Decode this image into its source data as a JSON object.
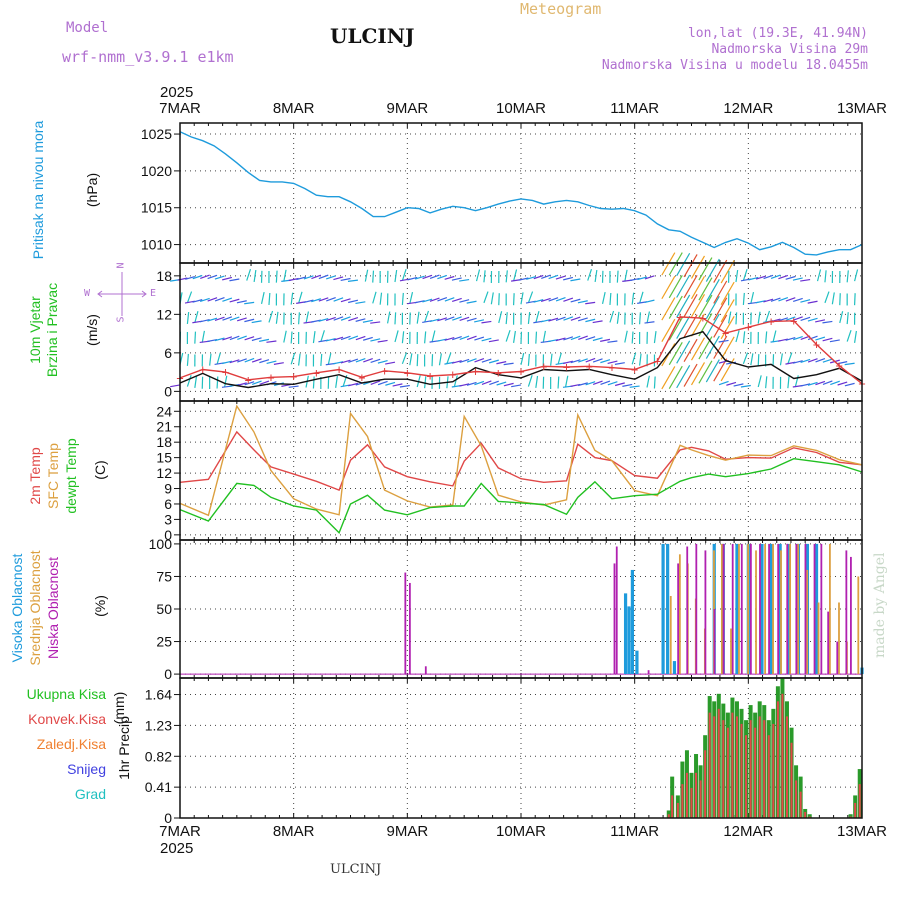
{
  "header": {
    "model_label": "Model",
    "model_name": "wrf-nmm_v3.9.1 e1km",
    "title": "ULCINJ",
    "product": "Meteogram",
    "coords": "lon,lat (19.3E, 41.94N)",
    "elevation": "Nadmorska Visina 29m",
    "model_elevation": "Nadmorska Visina u modelu 18.0455m",
    "year_top": "2025",
    "year_bottom": "2025",
    "footer_station": "ULCINJ",
    "watermark": "made by Angel"
  },
  "colors": {
    "pressure": "#1e9bdc",
    "wind_speed": "#111111",
    "wind_gust": "#e03c3c",
    "t2m": "#e04848",
    "tsfc": "#dca040",
    "dewpt": "#22c022",
    "cloud_high": "#1e9bdc",
    "cloud_mid": "#dca040",
    "cloud_low": "#b020b0",
    "precip_total": "#2a9a2a",
    "precip_conv": "#e04848",
    "precip_strat": "#f08030",
    "snow": "#4040e0",
    "hail": "#20c0c0",
    "compass": "#b070d0"
  },
  "chart_data": [
    {
      "type": "line",
      "panel": "pressure",
      "ylabel_main": "Pritisak na nivou mora",
      "unit": "(hPa)",
      "x": [
        "7MAR",
        "8MAR",
        "9MAR",
        "10MAR",
        "11MAR",
        "12MAR",
        "13MAR"
      ],
      "yticks": [
        1010,
        1015,
        1020,
        1025
      ],
      "ylim": [
        1007.5,
        1026.5
      ],
      "grid": true,
      "series": [
        {
          "x": [
            0,
            0.1,
            0.2,
            0.3,
            0.4,
            0.5,
            0.6,
            0.7,
            0.8,
            0.9,
            1.0,
            1.1,
            1.2,
            1.3,
            1.4,
            1.5,
            1.6,
            1.7,
            1.8,
            1.9,
            2.0,
            2.1,
            2.2,
            2.3,
            2.4,
            2.5,
            2.6,
            2.7,
            2.8,
            2.9,
            3.0,
            3.1,
            3.2,
            3.3,
            3.4,
            3.5,
            3.6,
            3.7,
            3.8,
            3.9,
            4.0,
            4.1,
            4.2,
            4.3,
            4.4,
            4.5,
            4.6,
            4.7,
            4.8,
            4.9,
            5.0,
            5.1,
            5.2,
            5.3,
            5.4,
            5.5,
            5.6,
            5.7,
            5.8,
            5.9,
            6.0
          ],
          "y": [
            1025.3,
            1024.6,
            1024.1,
            1023.4,
            1022.3,
            1021.1,
            1019.8,
            1018.7,
            1018.5,
            1018.5,
            1018.3,
            1017.6,
            1016.7,
            1016.5,
            1016.5,
            1015.8,
            1014.9,
            1013.8,
            1013.8,
            1014.4,
            1015.0,
            1014.9,
            1014.3,
            1014.8,
            1015.2,
            1015.0,
            1014.6,
            1015.0,
            1015.5,
            1015.9,
            1016.2,
            1016.0,
            1015.5,
            1015.8,
            1016.0,
            1015.8,
            1015.3,
            1014.9,
            1014.8,
            1014.9,
            1014.6,
            1014.0,
            1012.8,
            1012.0,
            1011.8,
            1011.0,
            1010.3,
            1009.6,
            1010.3,
            1010.8,
            1010.2,
            1009.3,
            1009.7,
            1010.3,
            1009.6,
            1008.7,
            1008.6,
            1009.0,
            1009.3,
            1009.3,
            1010.0
          ]
        }
      ]
    },
    {
      "type": "line",
      "panel": "wind",
      "ylabel_main": "10m Vjetar",
      "ylabel_sub": "Brzina i Pravac",
      "unit": "(m/s)",
      "compass": {
        "n": "N",
        "s": "S",
        "w": "W",
        "e": "E"
      },
      "x": [
        "7MAR",
        "8MAR",
        "9MAR",
        "10MAR",
        "11MAR",
        "12MAR",
        "13MAR"
      ],
      "yticks": [
        0,
        6,
        12,
        18
      ],
      "ylim": [
        -1.5,
        20
      ],
      "grid": true,
      "series": [
        {
          "name": "speed",
          "x": [
            0,
            0.2,
            0.4,
            0.6,
            0.8,
            1.0,
            1.2,
            1.4,
            1.6,
            1.8,
            2.0,
            2.2,
            2.4,
            2.6,
            2.8,
            3.0,
            3.2,
            3.4,
            3.6,
            3.8,
            4.0,
            4.2,
            4.4,
            4.6,
            4.8,
            5.0,
            5.2,
            5.4,
            5.6,
            5.8,
            6.0
          ],
          "y": [
            1.3,
            2.8,
            1.2,
            0.6,
            1.2,
            1.1,
            1.9,
            2.6,
            1.3,
            1.9,
            1.9,
            1.1,
            1.5,
            3.7,
            2.6,
            2.1,
            3.4,
            3.2,
            3.4,
            2.6,
            1.9,
            3.7,
            8.2,
            9.3,
            4.8,
            3.8,
            4.2,
            2.0,
            2.6,
            3.6,
            1.6
          ]
        },
        {
          "name": "gust",
          "x": [
            0,
            0.2,
            0.4,
            0.6,
            0.8,
            1.0,
            1.2,
            1.4,
            1.6,
            1.8,
            2.0,
            2.2,
            2.4,
            2.6,
            2.8,
            3.0,
            3.2,
            3.4,
            3.6,
            3.8,
            4.0,
            4.2,
            4.4,
            4.6,
            4.8,
            5.0,
            5.2,
            5.4,
            5.6,
            5.8,
            6.0
          ],
          "y": [
            2.1,
            3.4,
            3.0,
            1.8,
            2.2,
            2.3,
            2.9,
            3.4,
            2.2,
            3.2,
            2.9,
            2.4,
            2.6,
            3.1,
            2.9,
            3.1,
            3.9,
            3.8,
            3.9,
            3.7,
            3.4,
            4.7,
            11.6,
            11.4,
            9.1,
            10.0,
            10.9,
            11.0,
            7.3,
            4.0,
            1.2
          ]
        }
      ]
    },
    {
      "type": "line",
      "panel": "temperature",
      "ylabel_t2m": "2m Temp",
      "ylabel_tsfc": "SFC Temp",
      "ylabel_dew": "dewpt Temp",
      "unit": "(C)",
      "x": [
        "7MAR",
        "8MAR",
        "9MAR",
        "10MAR",
        "11MAR",
        "12MAR",
        "13MAR"
      ],
      "yticks": [
        0,
        3,
        6,
        9,
        12,
        15,
        18,
        21,
        24
      ],
      "ylim": [
        -1,
        26
      ],
      "grid": true,
      "series": [
        {
          "name": "t2m",
          "x": [
            0,
            0.25,
            0.5,
            0.65,
            0.8,
            1.0,
            1.2,
            1.4,
            1.5,
            1.65,
            1.8,
            2.0,
            2.2,
            2.4,
            2.5,
            2.65,
            2.8,
            3.0,
            3.2,
            3.4,
            3.5,
            3.65,
            3.8,
            4.0,
            4.2,
            4.4,
            4.5,
            4.65,
            4.8,
            5.0,
            5.2,
            5.4,
            5.6,
            5.8,
            6.0
          ],
          "y": [
            10.2,
            10.8,
            20.0,
            16.5,
            13.2,
            11.8,
            10.4,
            8.7,
            14.5,
            17.5,
            13.2,
            11.3,
            10.3,
            9.5,
            14.3,
            17.8,
            13.0,
            10.9,
            10.2,
            10.5,
            17.6,
            15.0,
            14.4,
            11.5,
            11.0,
            16.5,
            17.0,
            16.3,
            14.7,
            15.0,
            14.9,
            16.9,
            16.0,
            14.1,
            13.6
          ]
        },
        {
          "name": "tsfc",
          "x": [
            0,
            0.25,
            0.5,
            0.65,
            0.8,
            1.0,
            1.2,
            1.4,
            1.5,
            1.65,
            1.8,
            2.0,
            2.2,
            2.4,
            2.5,
            2.65,
            2.8,
            3.0,
            3.2,
            3.4,
            3.5,
            3.65,
            3.8,
            4.0,
            4.2,
            4.4,
            4.5,
            4.65,
            4.8,
            5.0,
            5.2,
            5.4,
            5.6,
            5.8,
            6.0
          ],
          "y": [
            6.1,
            3.8,
            25.0,
            20.0,
            12.5,
            7.0,
            5.0,
            3.9,
            23.6,
            19.1,
            8.7,
            6.6,
            5.4,
            5.8,
            23.0,
            17.3,
            7.7,
            6.4,
            5.8,
            6.8,
            23.3,
            16.4,
            14.4,
            8.6,
            7.6,
            17.4,
            16.5,
            15.4,
            14.5,
            15.5,
            15.4,
            17.3,
            16.4,
            14.6,
            13.6
          ]
        },
        {
          "name": "dewpt",
          "x": [
            0,
            0.25,
            0.5,
            0.65,
            0.8,
            1.0,
            1.2,
            1.4,
            1.5,
            1.65,
            1.8,
            2.0,
            2.2,
            2.4,
            2.5,
            2.65,
            2.8,
            3.0,
            3.2,
            3.4,
            3.5,
            3.65,
            3.8,
            4.0,
            4.2,
            4.4,
            4.5,
            4.65,
            4.8,
            5.0,
            5.2,
            5.4,
            5.6,
            5.8,
            6.0
          ],
          "y": [
            4.9,
            2.7,
            10.0,
            9.6,
            7.3,
            5.6,
            4.8,
            0.4,
            6.0,
            7.7,
            4.8,
            3.9,
            5.3,
            5.6,
            5.6,
            10.0,
            6.5,
            6.2,
            5.9,
            4.0,
            7.3,
            10.3,
            7.0,
            7.6,
            7.9,
            10.4,
            11.1,
            11.8,
            11.3,
            11.9,
            12.8,
            14.8,
            14.2,
            13.6,
            12.2
          ]
        }
      ]
    },
    {
      "type": "bar",
      "panel": "cloud",
      "ylabel_high": "Visoka Oblacnost",
      "ylabel_mid": "Srednja Oblacnost",
      "ylabel_low": "Niska Oblacnost",
      "unit": "(%)",
      "x": [
        "7MAR",
        "8MAR",
        "9MAR",
        "10MAR",
        "11MAR",
        "12MAR",
        "13MAR"
      ],
      "yticks": [
        0,
        25,
        50,
        75,
        100
      ],
      "ylim": [
        -3,
        103
      ],
      "grid": true,
      "series": [
        {
          "name": "high",
          "x": [
            3.92,
            3.95,
            3.98,
            4.02,
            4.25,
            4.29,
            4.35,
            4.7,
            4.78,
            4.9,
            5.0,
            5.12,
            5.2,
            5.28,
            5.35,
            5.44,
            5.52,
            5.6,
            6.0
          ],
          "y": [
            62,
            52,
            80,
            18,
            100,
            100,
            10,
            100,
            100,
            100,
            100,
            100,
            100,
            100,
            100,
            100,
            100,
            100,
            5
          ]
        },
        {
          "name": "mid",
          "x": [
            4.3,
            4.38,
            4.45,
            4.52,
            4.6,
            4.68,
            4.75,
            4.83,
            4.9,
            4.98,
            5.05,
            5.13,
            5.2,
            5.27,
            5.35,
            5.42,
            5.5,
            5.6,
            5.7,
            5.78,
            5.85,
            5.95
          ],
          "y": [
            60,
            92,
            85,
            58,
            35,
            95,
            100,
            35,
            100,
            100,
            95,
            100,
            100,
            95,
            100,
            100,
            80,
            55,
            100,
            55,
            25,
            75
          ]
        },
        {
          "name": "low",
          "x": [
            2.0,
            2.04,
            2.18,
            3.84,
            3.86,
            4.14,
            4.4,
            4.48,
            4.56,
            4.64,
            4.72,
            4.8,
            4.88,
            4.96,
            5.04,
            5.12,
            5.2,
            5.28,
            5.36,
            5.44,
            5.52,
            5.6,
            5.66,
            5.72,
            5.8,
            5.88,
            5.92
          ],
          "y": [
            78,
            70,
            6,
            85,
            98,
            3,
            85,
            98,
            100,
            95,
            50,
            100,
            100,
            100,
            100,
            100,
            100,
            100,
            100,
            100,
            100,
            100,
            100,
            48,
            25,
            95,
            90
          ]
        }
      ]
    },
    {
      "type": "bar",
      "panel": "precipitation",
      "ylabel_main": "1hr Precip",
      "unit": "(mm)",
      "legend": [
        "Ukupna Kisa",
        "Konvek.Kisa",
        "Zaledj.Kisa",
        "Snijeg",
        "Grad"
      ],
      "x": [
        "7MAR",
        "8MAR",
        "9MAR",
        "10MAR",
        "11MAR",
        "12MAR",
        "13MAR"
      ],
      "yticks": [
        0,
        0.41,
        0.82,
        1.23,
        1.64
      ],
      "ylim": [
        0,
        1.86
      ],
      "grid": true,
      "series": [
        {
          "name": "Ukupna Kisa",
          "x": [
            4.3,
            4.33,
            4.38,
            4.42,
            4.46,
            4.5,
            4.54,
            4.58,
            4.62,
            4.66,
            4.7,
            4.74,
            4.78,
            4.82,
            4.86,
            4.9,
            4.94,
            4.98,
            5.02,
            5.06,
            5.1,
            5.14,
            5.18,
            5.22,
            5.26,
            5.3,
            5.34,
            5.38,
            5.42,
            5.46,
            5.5,
            5.54,
            5.58,
            5.62,
            5.66,
            5.7,
            5.74,
            5.78,
            5.82,
            5.86,
            5.9,
            5.94,
            5.98
          ],
          "y": [
            0.1,
            0.55,
            0.3,
            0.75,
            0.9,
            0.6,
            0.85,
            0.7,
            1.1,
            1.62,
            1.55,
            1.65,
            1.52,
            1.4,
            1.6,
            1.55,
            1.45,
            1.3,
            1.5,
            1.4,
            1.55,
            1.5,
            1.3,
            1.45,
            1.75,
            1.86,
            1.55,
            1.2,
            0.7,
            0.55,
            0.12,
            0.05,
            0.0,
            0.0,
            0.0,
            0.0,
            0.0,
            0.0,
            0.0,
            0.0,
            0.05,
            0.3,
            0.65
          ]
        },
        {
          "name": "Konvek.Kisa",
          "x": [
            4.3,
            4.33,
            4.38,
            4.42,
            4.46,
            4.5,
            4.54,
            4.58,
            4.62,
            4.66,
            4.7,
            4.74,
            4.78,
            4.82,
            4.86,
            4.9,
            4.94,
            4.98,
            5.02,
            5.06,
            5.1,
            5.14,
            5.18,
            5.22,
            5.26,
            5.3,
            5.34,
            5.38,
            5.42,
            5.46,
            5.5,
            5.54,
            5.58,
            5.62,
            5.66,
            5.7,
            5.74,
            5.78,
            5.82,
            5.86,
            5.9,
            5.94,
            5.98
          ],
          "y": [
            0.05,
            0.3,
            0.2,
            0.45,
            0.6,
            0.4,
            0.6,
            0.5,
            0.9,
            1.4,
            1.35,
            1.45,
            1.3,
            1.2,
            1.4,
            1.35,
            1.25,
            1.1,
            1.3,
            1.2,
            1.35,
            1.3,
            1.1,
            1.25,
            1.55,
            1.65,
            1.35,
            1.0,
            0.5,
            0.35,
            0.08,
            0.02,
            0.0,
            0.0,
            0.0,
            0.0,
            0.0,
            0.0,
            0.0,
            0.0,
            0.02,
            0.2,
            0.45
          ]
        },
        {
          "name": "Zaledj.Kisa",
          "x": [],
          "y": []
        },
        {
          "name": "Snijeg",
          "x": [],
          "y": []
        },
        {
          "name": "Grad",
          "x": [],
          "y": []
        }
      ]
    }
  ]
}
